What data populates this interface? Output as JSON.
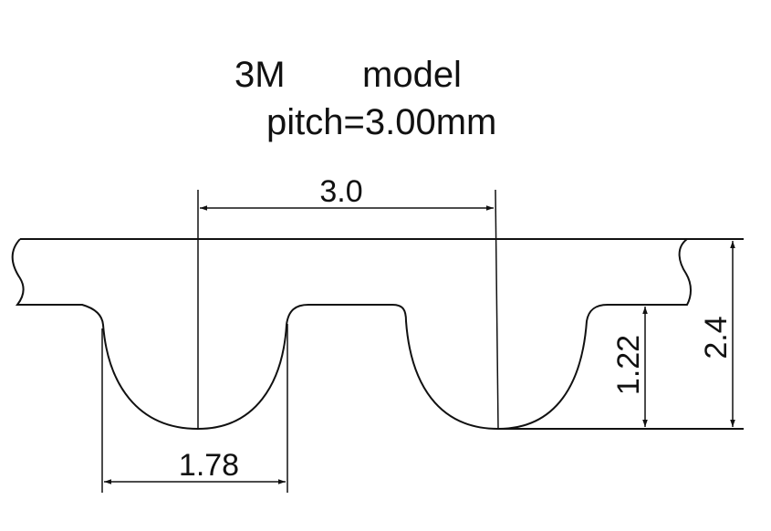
{
  "title": {
    "model_code": "3M",
    "model_word": "model",
    "pitch": "pitch=3.00mm"
  },
  "dimensions": {
    "pitch": "3.0",
    "tooth_width": "1.78",
    "tooth_height": "1.22",
    "total_height": "2.4"
  }
}
